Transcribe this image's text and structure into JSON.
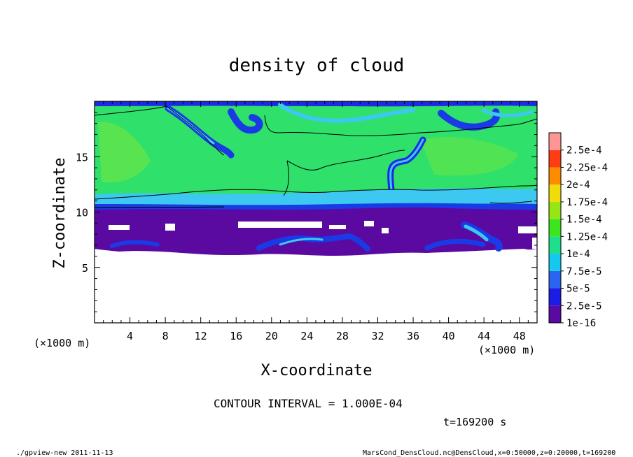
{
  "chart_data": {
    "type": "heatmap",
    "title": "density of cloud",
    "xlabel": "X-coordinate",
    "ylabel": "Z-coordinate",
    "x_unit": "(×1000 m)",
    "y_unit": "(×1000 m)",
    "xlim": [
      0,
      50
    ],
    "ylim": [
      0,
      20
    ],
    "x_ticks": [
      4,
      8,
      12,
      16,
      20,
      24,
      28,
      32,
      36,
      40,
      44,
      48
    ],
    "y_ticks": [
      5,
      10,
      15
    ],
    "colorbar": {
      "levels": [
        "1e-16",
        "2.5e-5",
        "5e-5",
        "7.5e-5",
        "1e-4",
        "1.25e-4",
        "1.5e-4",
        "1.75e-4",
        "2e-4",
        "2.25e-4",
        "2.5e-4"
      ],
      "colors": [
        "#5a0aa0",
        "#1c1ce6",
        "#2a64f0",
        "#14c8f0",
        "#1ee08c",
        "#3ce61e",
        "#96e614",
        "#f0dc0a",
        "#ff8c00",
        "#ff3c14",
        "#ff9696"
      ]
    },
    "fields": {
      "upper_band_top_z": 19.5,
      "upper_band_bottom_z": 10.2,
      "cloud_base_z": 6.3,
      "high_density_level": "1e-4",
      "low_density_level": "1e-16"
    }
  },
  "footer": {
    "contour_interval": "CONTOUR INTERVAL = 1.000E-04",
    "time": "t=169200 s",
    "program": "./gpview-new  2011-11-13",
    "source": "MarsCond_DensCloud.nc@DensCloud,x=0:50000,z=0:20000,t=169200"
  }
}
